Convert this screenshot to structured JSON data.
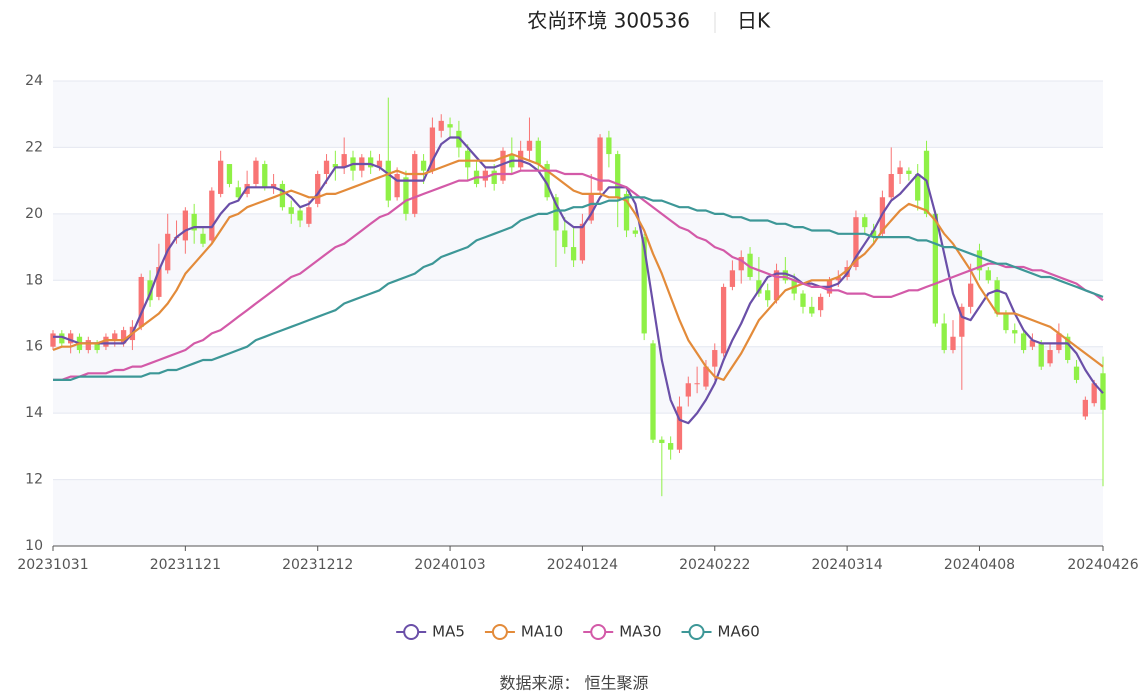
{
  "chart_data": {
    "type": "candlestick",
    "title": "农尚环境 300536",
    "subtitle": "日K",
    "source": "数据来源： 恒生聚源",
    "categories": [
      "20231031",
      null,
      null,
      null,
      null,
      null,
      null,
      null,
      null,
      null,
      null,
      null,
      null,
      null,
      null,
      "20231121",
      null,
      null,
      null,
      null,
      null,
      null,
      null,
      null,
      null,
      null,
      null,
      null,
      null,
      null,
      "20231212",
      null,
      null,
      null,
      null,
      null,
      null,
      null,
      null,
      null,
      null,
      null,
      null,
      null,
      null,
      "20240103",
      null,
      null,
      null,
      null,
      null,
      null,
      null,
      null,
      null,
      null,
      null,
      null,
      null,
      null,
      "20240124",
      null,
      null,
      null,
      null,
      null,
      null,
      null,
      null,
      null,
      null,
      null,
      null,
      null,
      null,
      "20240222",
      null,
      null,
      null,
      null,
      null,
      null,
      null,
      null,
      null,
      null,
      null,
      null,
      null,
      null,
      "20240314",
      null,
      null,
      null,
      null,
      null,
      null,
      null,
      null,
      null,
      null,
      null,
      null,
      null,
      null,
      "20240408",
      null,
      null,
      null,
      null,
      null,
      null,
      null,
      null,
      null,
      null,
      null,
      null,
      null,
      "20240426"
    ],
    "ohlc": [
      [
        16.0,
        16.4,
        15.9,
        16.5
      ],
      [
        16.4,
        16.1,
        16.0,
        16.5
      ],
      [
        16.1,
        16.4,
        15.8,
        16.5
      ],
      [
        16.3,
        15.9,
        15.8,
        16.4
      ],
      [
        15.9,
        16.2,
        15.8,
        16.3
      ],
      [
        16.1,
        15.9,
        15.8,
        16.2
      ],
      [
        16.0,
        16.3,
        15.9,
        16.4
      ],
      [
        16.2,
        16.4,
        16.0,
        16.5
      ],
      [
        16.1,
        16.5,
        16.0,
        16.6
      ],
      [
        16.2,
        16.6,
        15.9,
        16.8
      ],
      [
        16.6,
        18.1,
        16.5,
        18.2
      ],
      [
        18.0,
        17.4,
        17.2,
        18.3
      ],
      [
        17.5,
        18.4,
        17.4,
        19.1
      ],
      [
        18.3,
        19.4,
        18.2,
        20.0
      ],
      [
        19.3,
        19.3,
        19.1,
        19.8
      ],
      [
        19.2,
        20.1,
        18.8,
        20.2
      ],
      [
        20.0,
        19.5,
        19.1,
        20.3
      ],
      [
        19.4,
        19.1,
        19.0,
        19.6
      ],
      [
        19.2,
        20.7,
        19.1,
        20.8
      ],
      [
        20.6,
        21.6,
        20.5,
        21.9
      ],
      [
        21.5,
        20.9,
        20.8,
        21.5
      ],
      [
        20.8,
        20.5,
        20.4,
        21.0
      ],
      [
        20.6,
        20.9,
        20.5,
        21.3
      ],
      [
        20.9,
        21.6,
        20.8,
        21.7
      ],
      [
        21.5,
        20.8,
        20.7,
        21.6
      ],
      [
        20.8,
        20.9,
        20.6,
        21.2
      ],
      [
        20.9,
        20.2,
        20.1,
        21.0
      ],
      [
        20.2,
        20.0,
        19.7,
        20.4
      ],
      [
        20.1,
        19.8,
        19.6,
        20.2
      ],
      [
        19.7,
        20.2,
        19.6,
        20.4
      ],
      [
        20.3,
        21.2,
        20.2,
        21.3
      ],
      [
        21.2,
        21.6,
        20.9,
        21.8
      ],
      [
        21.5,
        21.4,
        21.0,
        21.9
      ],
      [
        21.4,
        21.8,
        21.2,
        22.3
      ],
      [
        21.7,
        21.3,
        21.0,
        21.9
      ],
      [
        21.3,
        21.7,
        21.1,
        21.8
      ],
      [
        21.7,
        21.4,
        21.2,
        21.9
      ],
      [
        21.4,
        21.6,
        21.3,
        21.8
      ],
      [
        21.6,
        20.4,
        20.2,
        23.5
      ],
      [
        20.5,
        21.2,
        20.4,
        21.4
      ],
      [
        21.1,
        20.0,
        19.8,
        21.3
      ],
      [
        20.0,
        21.8,
        19.9,
        21.9
      ],
      [
        21.6,
        21.3,
        20.9,
        21.8
      ],
      [
        21.3,
        22.6,
        21.2,
        22.9
      ],
      [
        22.5,
        22.8,
        22.3,
        23.0
      ],
      [
        22.7,
        22.6,
        22.3,
        22.9
      ],
      [
        22.5,
        22.0,
        21.7,
        22.8
      ],
      [
        21.9,
        21.4,
        21.0,
        22.1
      ],
      [
        21.3,
        20.9,
        20.8,
        21.6
      ],
      [
        21.0,
        21.3,
        20.8,
        21.4
      ],
      [
        21.3,
        20.9,
        20.7,
        21.5
      ],
      [
        21.0,
        21.9,
        20.9,
        22.0
      ],
      [
        21.8,
        21.4,
        21.2,
        22.3
      ],
      [
        21.4,
        21.9,
        21.3,
        22.2
      ],
      [
        21.9,
        22.2,
        21.6,
        22.9
      ],
      [
        22.2,
        21.5,
        21.3,
        22.3
      ],
      [
        21.5,
        20.5,
        20.4,
        21.6
      ],
      [
        20.5,
        19.5,
        18.4,
        20.6
      ],
      [
        19.5,
        19.0,
        18.8,
        19.9
      ],
      [
        19.0,
        18.6,
        18.4,
        19.6
      ],
      [
        18.6,
        19.7,
        18.5,
        20.0
      ],
      [
        19.8,
        20.6,
        19.7,
        21.2
      ],
      [
        20.7,
        22.3,
        20.6,
        22.4
      ],
      [
        22.3,
        21.8,
        21.4,
        22.5
      ],
      [
        21.8,
        20.5,
        19.6,
        21.9
      ],
      [
        20.6,
        19.5,
        19.3,
        20.7
      ],
      [
        19.5,
        19.4,
        19.3,
        19.6
      ],
      [
        19.3,
        16.4,
        16.2,
        19.4
      ],
      [
        16.1,
        13.2,
        13.1,
        16.2
      ],
      [
        13.2,
        13.1,
        11.5,
        13.3
      ],
      [
        13.1,
        12.9,
        12.6,
        13.3
      ],
      [
        12.9,
        14.2,
        12.8,
        14.5
      ],
      [
        14.5,
        14.9,
        14.2,
        15.1
      ],
      [
        14.9,
        14.9,
        14.6,
        15.4
      ],
      [
        14.8,
        15.4,
        14.7,
        15.6
      ],
      [
        15.4,
        15.9,
        15.0,
        16.1
      ],
      [
        15.8,
        17.8,
        15.7,
        17.9
      ],
      [
        17.8,
        18.3,
        17.7,
        18.6
      ],
      [
        18.3,
        18.7,
        17.9,
        18.9
      ],
      [
        18.8,
        18.1,
        18.0,
        19.0
      ],
      [
        18.0,
        17.6,
        17.5,
        18.7
      ],
      [
        17.7,
        17.4,
        17.2,
        17.9
      ],
      [
        17.4,
        18.3,
        17.3,
        18.5
      ],
      [
        18.3,
        18.0,
        17.9,
        18.7
      ],
      [
        18.0,
        17.6,
        17.4,
        18.2
      ],
      [
        17.6,
        17.2,
        17.0,
        17.7
      ],
      [
        17.2,
        17.0,
        16.9,
        17.5
      ],
      [
        17.1,
        17.5,
        16.9,
        17.6
      ],
      [
        17.6,
        18.0,
        17.5,
        18.1
      ],
      [
        18.0,
        18.1,
        17.8,
        18.3
      ],
      [
        18.1,
        18.4,
        18.0,
        18.6
      ],
      [
        18.4,
        19.9,
        18.3,
        20.1
      ],
      [
        19.9,
        19.6,
        19.4,
        20.0
      ],
      [
        19.5,
        19.3,
        19.1,
        19.7
      ],
      [
        19.4,
        20.5,
        19.3,
        20.7
      ],
      [
        20.5,
        21.2,
        20.4,
        22.0
      ],
      [
        21.2,
        21.4,
        20.9,
        21.6
      ],
      [
        21.3,
        21.2,
        21.0,
        21.4
      ],
      [
        21.2,
        20.4,
        20.1,
        21.5
      ],
      [
        21.9,
        20.0,
        19.9,
        22.2
      ],
      [
        20.0,
        16.7,
        16.6,
        20.1
      ],
      [
        16.7,
        15.9,
        15.8,
        17.0
      ],
      [
        15.9,
        16.3,
        15.8,
        16.8
      ],
      [
        16.3,
        17.2,
        14.7,
        17.3
      ],
      [
        17.2,
        17.9,
        17.0,
        18.5
      ],
      [
        18.9,
        18.3,
        18.0,
        19.1
      ],
      [
        18.3,
        18.0,
        17.9,
        18.4
      ],
      [
        18.0,
        17.0,
        16.9,
        18.1
      ],
      [
        17.0,
        16.5,
        16.4,
        17.1
      ],
      [
        16.5,
        16.4,
        16.1,
        16.7
      ],
      [
        16.4,
        15.9,
        15.8,
        16.5
      ],
      [
        16.0,
        16.2,
        15.9,
        16.4
      ],
      [
        16.1,
        15.4,
        15.3,
        16.2
      ],
      [
        15.5,
        15.9,
        15.4,
        16.1
      ],
      [
        15.9,
        16.4,
        15.8,
        16.7
      ],
      [
        16.3,
        15.6,
        15.5,
        16.4
      ],
      [
        15.4,
        15.0,
        14.9,
        15.6
      ],
      [
        13.9,
        14.4,
        13.8,
        14.5
      ],
      [
        14.3,
        14.9,
        14.2,
        15.0
      ],
      [
        15.2,
        14.1,
        11.8,
        15.7
      ]
    ],
    "up_color": "#f87474",
    "down_color": "#8ff046",
    "series": [
      {
        "name": "MA5",
        "color": "#6a4fa8",
        "values": [
          16.3,
          16.3,
          16.2,
          16.1,
          16.1,
          16.1,
          16.1,
          16.1,
          16.1,
          16.4,
          17.0,
          17.6,
          18.3,
          18.9,
          19.3,
          19.5,
          19.6,
          19.6,
          19.6,
          20.0,
          20.3,
          20.4,
          20.8,
          20.8,
          20.8,
          20.8,
          20.7,
          20.5,
          20.2,
          20.3,
          20.6,
          21.0,
          21.4,
          21.4,
          21.5,
          21.5,
          21.5,
          21.4,
          21.2,
          21.0,
          21.0,
          21.0,
          21.0,
          21.6,
          22.1,
          22.3,
          22.3,
          22.0,
          21.7,
          21.4,
          21.4,
          21.5,
          21.6,
          21.6,
          21.5,
          21.3,
          20.9,
          20.3,
          19.8,
          19.6,
          19.6,
          20.0,
          20.5,
          20.8,
          20.8,
          20.8,
          20.3,
          19.0,
          17.3,
          15.6,
          14.4,
          13.8,
          13.7,
          14.0,
          14.4,
          14.9,
          15.6,
          16.2,
          16.7,
          17.3,
          17.7,
          18.1,
          18.2,
          18.2,
          18.1,
          17.9,
          17.9,
          17.8,
          17.8,
          17.9,
          18.2,
          18.7,
          19.1,
          19.5,
          20.0,
          20.4,
          20.6,
          20.9,
          21.2,
          21.0,
          20.0,
          18.8,
          17.6,
          16.9,
          16.8,
          17.2,
          17.6,
          17.7,
          17.6,
          17.0,
          16.5,
          16.2,
          16.1,
          16.1,
          16.1,
          16.1,
          15.8,
          15.3,
          14.9,
          14.6
        ]
      },
      {
        "name": "MA10",
        "color": "#e38b3a",
        "values": [
          15.9,
          16.0,
          16.0,
          16.1,
          16.1,
          16.1,
          16.2,
          16.2,
          16.2,
          16.4,
          16.6,
          16.8,
          17.0,
          17.3,
          17.7,
          18.2,
          18.5,
          18.8,
          19.1,
          19.5,
          19.9,
          20.0,
          20.2,
          20.3,
          20.4,
          20.5,
          20.6,
          20.7,
          20.6,
          20.5,
          20.5,
          20.6,
          20.6,
          20.7,
          20.8,
          20.9,
          21.0,
          21.1,
          21.2,
          21.3,
          21.2,
          21.2,
          21.2,
          21.3,
          21.4,
          21.5,
          21.6,
          21.6,
          21.6,
          21.6,
          21.6,
          21.7,
          21.8,
          21.7,
          21.6,
          21.5,
          21.3,
          21.1,
          20.9,
          20.7,
          20.6,
          20.6,
          20.6,
          20.5,
          20.5,
          20.4,
          20.0,
          19.5,
          18.8,
          18.2,
          17.5,
          16.8,
          16.2,
          15.8,
          15.4,
          15.1,
          15.0,
          15.4,
          15.8,
          16.3,
          16.8,
          17.1,
          17.4,
          17.7,
          17.8,
          17.9,
          18.0,
          18.0,
          18.0,
          18.1,
          18.3,
          18.6,
          18.8,
          19.1,
          19.5,
          19.8,
          20.1,
          20.3,
          20.2,
          20.1,
          19.8,
          19.4,
          19.1,
          18.7,
          18.3,
          17.8,
          17.4,
          17.0,
          17.0,
          17.0,
          16.9,
          16.8,
          16.7,
          16.6,
          16.4,
          16.2,
          16.0,
          15.8,
          15.6,
          15.4
        ]
      },
      {
        "name": "MA30",
        "color": "#d35aa8",
        "values": [
          15.0,
          15.0,
          15.1,
          15.1,
          15.2,
          15.2,
          15.2,
          15.3,
          15.3,
          15.4,
          15.4,
          15.5,
          15.6,
          15.7,
          15.8,
          15.9,
          16.1,
          16.2,
          16.4,
          16.5,
          16.7,
          16.9,
          17.1,
          17.3,
          17.5,
          17.7,
          17.9,
          18.1,
          18.2,
          18.4,
          18.6,
          18.8,
          19.0,
          19.1,
          19.3,
          19.5,
          19.7,
          19.9,
          20.0,
          20.2,
          20.4,
          20.5,
          20.6,
          20.7,
          20.8,
          20.9,
          21.0,
          21.0,
          21.1,
          21.1,
          21.2,
          21.2,
          21.2,
          21.3,
          21.3,
          21.3,
          21.3,
          21.3,
          21.2,
          21.2,
          21.2,
          21.1,
          21.0,
          21.0,
          20.9,
          20.8,
          20.6,
          20.4,
          20.2,
          20.0,
          19.8,
          19.6,
          19.5,
          19.3,
          19.2,
          19.0,
          18.9,
          18.7,
          18.6,
          18.4,
          18.3,
          18.2,
          18.1,
          18.1,
          18.0,
          17.9,
          17.8,
          17.8,
          17.7,
          17.7,
          17.6,
          17.6,
          17.6,
          17.5,
          17.5,
          17.5,
          17.6,
          17.7,
          17.7,
          17.8,
          17.9,
          18.0,
          18.1,
          18.2,
          18.3,
          18.4,
          18.5,
          18.5,
          18.4,
          18.4,
          18.4,
          18.3,
          18.3,
          18.2,
          18.1,
          18.0,
          17.9,
          17.7,
          17.6,
          17.4
        ]
      },
      {
        "name": "MA60",
        "color": "#3d9797",
        "values": [
          15.0,
          15.0,
          15.0,
          15.1,
          15.1,
          15.1,
          15.1,
          15.1,
          15.1,
          15.1,
          15.1,
          15.2,
          15.2,
          15.3,
          15.3,
          15.4,
          15.5,
          15.6,
          15.6,
          15.7,
          15.8,
          15.9,
          16.0,
          16.2,
          16.3,
          16.4,
          16.5,
          16.6,
          16.7,
          16.8,
          16.9,
          17.0,
          17.1,
          17.3,
          17.4,
          17.5,
          17.6,
          17.7,
          17.9,
          18.0,
          18.1,
          18.2,
          18.4,
          18.5,
          18.7,
          18.8,
          18.9,
          19.0,
          19.2,
          19.3,
          19.4,
          19.5,
          19.6,
          19.8,
          19.9,
          20.0,
          20.0,
          20.1,
          20.1,
          20.2,
          20.2,
          20.3,
          20.3,
          20.4,
          20.4,
          20.5,
          20.5,
          20.5,
          20.4,
          20.4,
          20.3,
          20.2,
          20.2,
          20.1,
          20.1,
          20.0,
          20.0,
          19.9,
          19.9,
          19.8,
          19.8,
          19.8,
          19.7,
          19.7,
          19.6,
          19.6,
          19.5,
          19.5,
          19.5,
          19.4,
          19.4,
          19.4,
          19.4,
          19.3,
          19.3,
          19.3,
          19.3,
          19.3,
          19.2,
          19.2,
          19.1,
          19.0,
          19.0,
          18.9,
          18.8,
          18.7,
          18.6,
          18.5,
          18.5,
          18.4,
          18.3,
          18.2,
          18.1,
          18.1,
          18.0,
          17.9,
          17.8,
          17.7,
          17.6,
          17.5
        ]
      }
    ],
    "ylim": [
      10,
      24
    ],
    "yticks": [
      10,
      12,
      14,
      16,
      18,
      20,
      22,
      24
    ],
    "grid": true,
    "legend": "bottom"
  }
}
